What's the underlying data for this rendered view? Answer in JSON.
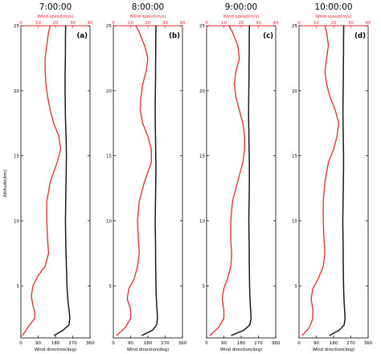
{
  "figure": {
    "y_axis_label": "Altitude(km)",
    "speed_axis_label": "Wind speed(m/s)",
    "direction_axis_label": "Wind direction(deg)"
  },
  "colors": {
    "speed": "#e8282b",
    "direction": "#1a1a1a",
    "frame": "#000000"
  },
  "chart_data": [
    {
      "type": "line",
      "title": "7:00:00",
      "panel_label": "(a)",
      "ylabel": "Altitude(km)",
      "ylim": [
        1,
        25
      ],
      "yticks": [
        5,
        10,
        15,
        20,
        25
      ],
      "top_axis": {
        "label": "Wind speed(m/s)",
        "lim": [
          0,
          40
        ],
        "ticks": [
          0,
          10,
          20,
          30,
          40
        ]
      },
      "bottom_axis": {
        "label": "Wind direction(deg)",
        "lim": [
          0,
          360
        ],
        "ticks": [
          0,
          90,
          180,
          270,
          360
        ]
      },
      "series": [
        {
          "label": "Wind speed(m/s)",
          "axis": "top",
          "color": "#e8282b",
          "y": [
            1.2,
            1.8,
            2.5,
            3.0,
            3.5,
            4.2,
            5.0,
            5.8,
            6.5,
            7.5,
            8.5,
            10,
            11.5,
            13,
            14.5,
            15.5,
            16.5,
            17.5,
            18.5,
            19.5,
            20.5,
            21.5,
            22.5,
            23.5,
            24.5,
            25
          ],
          "x": [
            1,
            4,
            8,
            8,
            7,
            6,
            7,
            10,
            14,
            16,
            15.5,
            15,
            15,
            17,
            21,
            23,
            22,
            19,
            17,
            15.5,
            14.5,
            14,
            14,
            15,
            16,
            17
          ]
        },
        {
          "label": "Wind direction(deg)",
          "axis": "bottom",
          "color": "#1a1a1a",
          "y": [
            1.2,
            1.6,
            2.0,
            2.5,
            3.0,
            3.5,
            4.0,
            5.0,
            6.0,
            7.0,
            8.0,
            9.0,
            10,
            11,
            12,
            13,
            14,
            15,
            16,
            17,
            18,
            19,
            20,
            21,
            22,
            23,
            24,
            25
          ],
          "x": [
            175,
            220,
            250,
            255,
            252,
            248,
            244,
            240,
            238,
            236,
            234,
            233,
            232,
            233,
            234,
            235,
            236,
            237,
            236,
            234,
            232,
            231,
            230,
            230,
            231,
            232,
            232,
            233
          ]
        }
      ]
    },
    {
      "type": "line",
      "title": "8:00:00",
      "panel_label": "(b)",
      "ylabel": "",
      "ylim": [
        1,
        25
      ],
      "yticks": [
        5,
        10,
        15,
        20,
        25
      ],
      "top_axis": {
        "label": "Wind speed(m/s)",
        "lim": [
          0,
          40
        ],
        "ticks": [
          0,
          10,
          20,
          30,
          40
        ]
      },
      "bottom_axis": {
        "label": "Wind direction(deg)",
        "lim": [
          0,
          360
        ],
        "ticks": [
          0,
          90,
          180,
          270,
          360
        ]
      },
      "series": [
        {
          "label": "Wind speed(m/s)",
          "axis": "top",
          "color": "#e8282b",
          "y": [
            1.2,
            1.8,
            2.5,
            3.2,
            4.0,
            4.8,
            5.5,
            6.5,
            7.5,
            8.5,
            10,
            11.5,
            13,
            14.5,
            15.5,
            16.5,
            17.5,
            18.5,
            19.5,
            20.5,
            21.5,
            22.5,
            23.5,
            24.5,
            25
          ],
          "x": [
            2,
            7,
            10,
            10,
            8,
            9,
            12,
            14,
            15,
            14.5,
            14,
            15,
            18,
            22,
            22,
            20,
            17,
            15.5,
            16,
            17,
            19,
            20,
            18,
            15,
            13
          ]
        },
        {
          "label": "Wind direction(deg)",
          "axis": "bottom",
          "color": "#1a1a1a",
          "y": [
            1.2,
            1.6,
            2.0,
            2.5,
            3.0,
            3.5,
            4.0,
            5.0,
            6.0,
            7.0,
            8.0,
            9.0,
            10,
            11,
            12,
            13,
            14,
            15,
            16,
            17,
            18,
            19,
            20,
            21,
            22,
            23,
            24,
            25
          ],
          "x": [
            150,
            205,
            225,
            230,
            228,
            226,
            224,
            222,
            221,
            220,
            220,
            219,
            218,
            219,
            220,
            221,
            222,
            221,
            220,
            219,
            218,
            218,
            219,
            220,
            220,
            221,
            221,
            222
          ]
        }
      ]
    },
    {
      "type": "line",
      "title": "9:00:00",
      "panel_label": "(c)",
      "ylabel": "",
      "ylim": [
        1,
        25
      ],
      "yticks": [
        5,
        10,
        15,
        20,
        25
      ],
      "top_axis": {
        "label": "Wind speed(m/s)",
        "lim": [
          0,
          40
        ],
        "ticks": [
          0,
          10,
          20,
          30,
          40
        ]
      },
      "bottom_axis": {
        "label": "Wind direction(deg)",
        "lim": [
          0,
          360
        ],
        "ticks": [
          0,
          90,
          180,
          270,
          360
        ]
      },
      "series": [
        {
          "label": "Wind speed(m/s)",
          "axis": "top",
          "color": "#e8282b",
          "y": [
            1.2,
            1.8,
            2.5,
            3.2,
            4.0,
            4.8,
            5.5,
            6.5,
            7.5,
            8.5,
            10,
            11.5,
            13,
            14.5,
            15.5,
            16.5,
            17.5,
            18.5,
            19.5,
            20.5,
            21.5,
            22.5,
            23.5,
            24.5,
            25
          ],
          "x": [
            2,
            7,
            10,
            10,
            9,
            10,
            12,
            14,
            14.5,
            14,
            14,
            15,
            18,
            21,
            22,
            22,
            21,
            19,
            17,
            16,
            17,
            19,
            18,
            15,
            13
          ]
        },
        {
          "label": "Wind direction(deg)",
          "axis": "bottom",
          "color": "#1a1a1a",
          "y": [
            1.2,
            1.6,
            2.0,
            2.5,
            3.0,
            3.5,
            4.0,
            5.0,
            6.0,
            7.0,
            8.0,
            9.0,
            10,
            11,
            12,
            13,
            14,
            15,
            16,
            17,
            18,
            19,
            20,
            21,
            22,
            23,
            24,
            25
          ],
          "x": [
            130,
            195,
            225,
            232,
            230,
            228,
            226,
            224,
            223,
            222,
            222,
            221,
            220,
            221,
            222,
            223,
            223,
            222,
            221,
            220,
            219,
            219,
            220,
            221,
            221,
            222,
            222,
            223
          ]
        }
      ]
    },
    {
      "type": "line",
      "title": "10:00:00",
      "panel_label": "(d)",
      "ylabel": "",
      "ylim": [
        1,
        25
      ],
      "yticks": [
        5,
        10,
        15,
        20,
        25
      ],
      "top_axis": {
        "label": "Wind speed(m/s)",
        "lim": [
          0,
          40
        ],
        "ticks": [
          0,
          10,
          20,
          30,
          40
        ]
      },
      "bottom_axis": {
        "label": "Wind direction(deg)",
        "lim": [
          0,
          360
        ],
        "ticks": [
          0,
          90,
          180,
          270,
          360
        ]
      },
      "series": [
        {
          "label": "Wind speed(m/s)",
          "axis": "top",
          "color": "#e8282b",
          "y": [
            1.2,
            1.8,
            2.5,
            3.2,
            4.0,
            4.8,
            5.5,
            6.5,
            7.5,
            8.5,
            10,
            11.5,
            13,
            14.5,
            15.5,
            16.5,
            17.5,
            18.5,
            19.5,
            20.5,
            21.5,
            22.5,
            23.5,
            24.5,
            25
          ],
          "x": [
            2,
            6,
            8,
            8,
            7,
            8,
            11,
            14,
            15,
            14.5,
            14,
            14,
            15,
            17,
            20,
            22,
            23,
            21,
            18,
            16,
            15,
            16,
            17,
            16,
            15
          ]
        },
        {
          "label": "Wind direction(deg)",
          "axis": "bottom",
          "color": "#1a1a1a",
          "y": [
            1.2,
            1.6,
            2.0,
            2.5,
            3.0,
            3.5,
            4.0,
            5.0,
            6.0,
            7.0,
            8.0,
            9.0,
            10,
            11,
            12,
            13,
            14,
            15,
            16,
            17,
            18,
            19,
            20,
            21,
            22,
            23,
            24,
            25
          ],
          "x": [
            160,
            210,
            235,
            240,
            238,
            236,
            234,
            232,
            231,
            230,
            230,
            229,
            228,
            229,
            230,
            231,
            232,
            232,
            231,
            230,
            229,
            229,
            230,
            231,
            231,
            232,
            232,
            233
          ]
        }
      ]
    }
  ]
}
